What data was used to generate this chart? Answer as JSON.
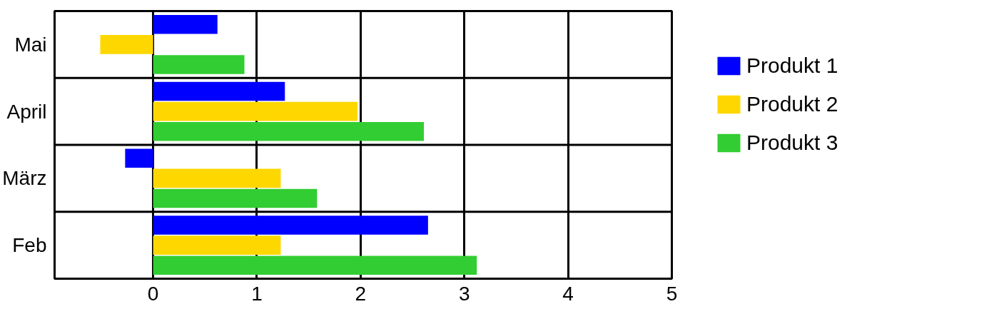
{
  "chart_data": {
    "type": "bar",
    "orientation": "horizontal",
    "categories": [
      "Mai",
      "April",
      "März",
      "Feb"
    ],
    "series": [
      {
        "name": "Produkt 1",
        "color": "#0000ff",
        "values": [
          0.62,
          1.27,
          -0.27,
          2.65
        ]
      },
      {
        "name": "Produkt 2",
        "color": "#ffd700",
        "values": [
          -0.51,
          1.97,
          1.23,
          1.23
        ]
      },
      {
        "name": "Produkt 3",
        "color": "#32cd32",
        "values": [
          0.88,
          2.61,
          1.58,
          3.12
        ]
      }
    ],
    "xlim": [
      -0.95,
      5
    ],
    "xticks": [
      0,
      1,
      2,
      3,
      4,
      5
    ],
    "grid": "x",
    "legend": "right"
  }
}
